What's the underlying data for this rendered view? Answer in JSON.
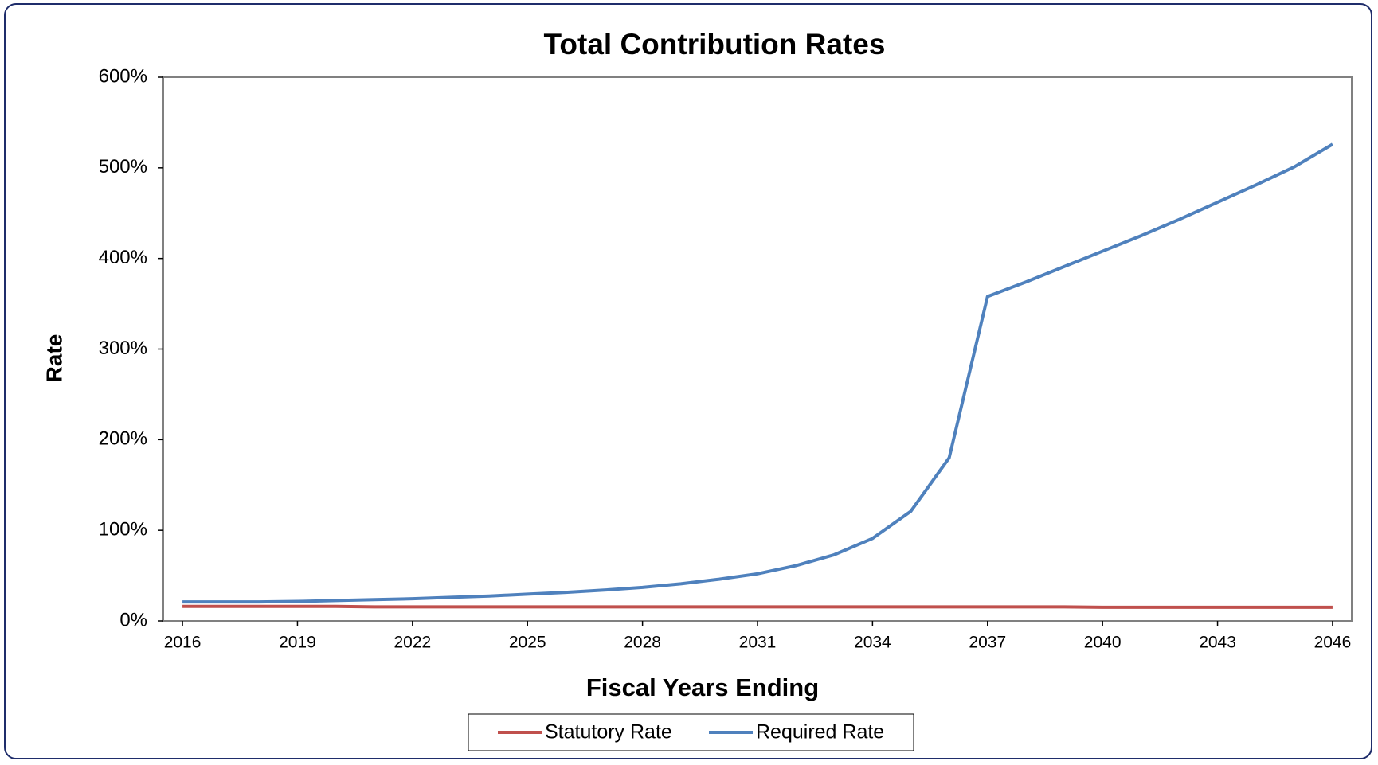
{
  "chart_data": {
    "type": "line",
    "title": "Total Contribution Rates",
    "x_label": "Fiscal Years Ending",
    "y_label": "Rate",
    "x": [
      2016,
      2017,
      2018,
      2019,
      2020,
      2021,
      2022,
      2023,
      2024,
      2025,
      2026,
      2027,
      2028,
      2029,
      2030,
      2031,
      2032,
      2033,
      2034,
      2035,
      2036,
      2037,
      2038,
      2039,
      2040,
      2041,
      2042,
      2043,
      2044,
      2045,
      2046
    ],
    "series": [
      {
        "name": "Statutory Rate",
        "color": "#c0504d",
        "values": [
          16,
          16,
          16,
          16,
          16,
          15.5,
          15.5,
          15.5,
          15.5,
          15.5,
          15.5,
          15.5,
          15.5,
          15.5,
          15.5,
          15.5,
          15.5,
          15.5,
          15.5,
          15.5,
          15.5,
          15.5,
          15.5,
          15.5,
          15,
          15,
          15,
          15,
          15,
          15,
          15
        ]
      },
      {
        "name": "Required Rate",
        "color": "#4f81bd",
        "values": [
          21,
          21,
          21,
          21.5,
          22.5,
          23.5,
          24.5,
          26,
          27.5,
          29.5,
          31.5,
          34,
          37,
          41,
          46,
          52,
          61,
          73,
          91,
          121,
          180,
          358,
          374,
          391,
          408,
          425,
          443,
          462,
          481,
          501,
          526
        ]
      }
    ],
    "xlim": [
      2015.5,
      2046.5
    ],
    "xticks": [
      2016,
      2019,
      2022,
      2025,
      2028,
      2031,
      2034,
      2037,
      2040,
      2043,
      2046
    ],
    "ylim": [
      0,
      600
    ],
    "yticks": [
      {
        "value": 0,
        "label": "0%"
      },
      {
        "value": 100,
        "label": "100%"
      },
      {
        "value": 200,
        "label": "200%"
      },
      {
        "value": 300,
        "label": "300%"
      },
      {
        "value": 400,
        "label": "400%"
      },
      {
        "value": 500,
        "label": "500%"
      },
      {
        "value": 600,
        "label": "600%"
      }
    ],
    "legend": "bottom"
  }
}
